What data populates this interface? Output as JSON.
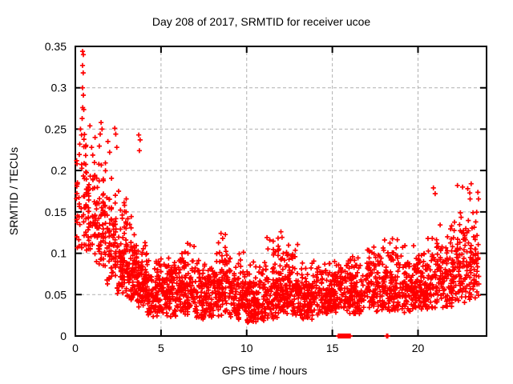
{
  "title": "Day 208 of 2017, SRMTID for receiver ucoe",
  "axes": {
    "xlabel": "GPS time / hours",
    "ylabel": "SRMTID / TECUs",
    "x_tick_labels": [
      "0",
      "5",
      "10",
      "15",
      "20"
    ],
    "y_tick_labels": [
      "0",
      "0.05",
      "0.1",
      "0.15",
      "0.2",
      "0.25",
      "0.3",
      "0.35"
    ]
  },
  "style": {
    "point_color": "#ff0000",
    "grid_color": "#b0b0b0",
    "border_color": "#000000",
    "background": "#ffffff"
  },
  "chart_data": {
    "type": "scatter",
    "title": "Day 208 of 2017, SRMTID for receiver ucoe",
    "xlabel": "GPS time / hours",
    "ylabel": "SRMTID / TECUs",
    "xlim": [
      0,
      24
    ],
    "ylim": [
      0,
      0.35
    ],
    "x_ticks": [
      0,
      5,
      10,
      15,
      20
    ],
    "y_ticks": [
      0,
      0.05,
      0.1,
      0.15,
      0.2,
      0.25,
      0.3,
      0.35
    ],
    "grid": true,
    "legend": "none",
    "marker": "plus",
    "series_color": "#ff0000",
    "description": "Dense scatter of ionospheric SRMTID values vs GPS time; high spread 0.09-0.34 TECU during hours 0-4 decaying into a dense band ~0.03-0.12 TECU for hours 4-21, rising again to ~0.19 by hour 23.5; flagged zero-value samples near hours 15.4-16.05 and 18.2.",
    "segments_format": [
      "hour_start",
      "hour_end",
      "n_points",
      "y_min",
      "y_max",
      "power_skew",
      "n_columns(0=uniform)"
    ],
    "density_segments": [
      [
        0.02,
        0.3,
        22,
        0.1,
        0.25,
        1.2,
        2
      ],
      [
        0.3,
        0.7,
        40,
        0.095,
        0.3,
        1.5,
        3
      ],
      [
        0.7,
        1.2,
        55,
        0.09,
        0.235,
        1.4,
        4
      ],
      [
        1.2,
        1.8,
        70,
        0.078,
        0.235,
        1.5,
        5
      ],
      [
        1.8,
        2.4,
        75,
        0.062,
        0.21,
        1.5,
        5
      ],
      [
        2.4,
        3.0,
        80,
        0.05,
        0.185,
        1.5,
        6
      ],
      [
        3.0,
        3.6,
        85,
        0.042,
        0.155,
        1.5,
        6
      ],
      [
        3.6,
        4.2,
        90,
        0.03,
        0.125,
        1.5,
        0
      ],
      [
        4.2,
        5.0,
        100,
        0.022,
        0.1,
        1.5,
        0
      ],
      [
        5.0,
        6.0,
        115,
        0.022,
        0.105,
        1.6,
        0
      ],
      [
        6.0,
        7.0,
        115,
        0.024,
        0.115,
        1.6,
        0
      ],
      [
        7.0,
        8.0,
        115,
        0.02,
        0.1,
        1.6,
        0
      ],
      [
        8.0,
        9.0,
        115,
        0.024,
        0.125,
        1.6,
        0
      ],
      [
        9.0,
        10.0,
        115,
        0.02,
        0.105,
        1.6,
        0
      ],
      [
        10.0,
        11.0,
        125,
        0.016,
        0.092,
        1.6,
        0
      ],
      [
        11.0,
        12.0,
        125,
        0.02,
        0.126,
        1.6,
        0
      ],
      [
        12.0,
        13.0,
        120,
        0.024,
        0.122,
        1.6,
        0
      ],
      [
        13.0,
        14.0,
        115,
        0.02,
        0.1,
        1.6,
        0
      ],
      [
        14.0,
        15.0,
        110,
        0.024,
        0.096,
        1.6,
        0
      ],
      [
        15.0,
        16.0,
        105,
        0.028,
        0.1,
        1.6,
        0
      ],
      [
        16.0,
        17.0,
        105,
        0.026,
        0.106,
        1.6,
        0
      ],
      [
        17.0,
        18.0,
        110,
        0.028,
        0.116,
        1.6,
        0
      ],
      [
        18.0,
        19.0,
        110,
        0.026,
        0.13,
        1.6,
        0
      ],
      [
        19.0,
        20.0,
        110,
        0.028,
        0.116,
        1.6,
        0
      ],
      [
        20.0,
        21.0,
        110,
        0.03,
        0.122,
        1.6,
        0
      ],
      [
        21.0,
        22.0,
        110,
        0.034,
        0.142,
        1.6,
        0
      ],
      [
        22.0,
        23.0,
        105,
        0.04,
        0.168,
        1.55,
        0
      ],
      [
        23.0,
        23.55,
        65,
        0.042,
        0.19,
        1.45,
        0
      ]
    ],
    "outlier_points": [
      [
        0.42,
        0.344
      ],
      [
        0.47,
        0.34
      ],
      [
        0.42,
        0.327
      ],
      [
        0.46,
        0.318
      ],
      [
        0.42,
        0.3
      ],
      [
        0.47,
        0.291
      ],
      [
        0.43,
        0.276
      ],
      [
        0.3,
        0.25
      ],
      [
        0.36,
        0.243
      ],
      [
        0.85,
        0.254
      ],
      [
        0.95,
        0.228
      ],
      [
        1.15,
        0.24
      ],
      [
        1.45,
        0.244
      ],
      [
        1.5,
        0.258
      ],
      [
        1.56,
        0.25
      ],
      [
        1.9,
        0.235
      ],
      [
        2.0,
        0.222
      ],
      [
        2.3,
        0.251
      ],
      [
        2.36,
        0.244
      ],
      [
        2.42,
        0.228
      ],
      [
        3.7,
        0.243
      ],
      [
        3.78,
        0.237
      ],
      [
        3.74,
        0.224
      ],
      [
        6.55,
        0.112
      ],
      [
        6.7,
        0.11
      ],
      [
        8.5,
        0.124
      ],
      [
        8.6,
        0.118
      ],
      [
        11.35,
        0.116
      ],
      [
        12.0,
        0.126
      ],
      [
        20.9,
        0.179
      ],
      [
        21.0,
        0.172
      ],
      [
        22.3,
        0.182
      ],
      [
        22.6,
        0.18
      ],
      [
        22.9,
        0.178
      ],
      [
        23.1,
        0.184
      ]
    ],
    "zero_value_bar": {
      "x_start": 15.35,
      "x_end": 16.05,
      "y": 0
    },
    "zero_value_point": {
      "x": 18.2,
      "y": 0
    }
  }
}
